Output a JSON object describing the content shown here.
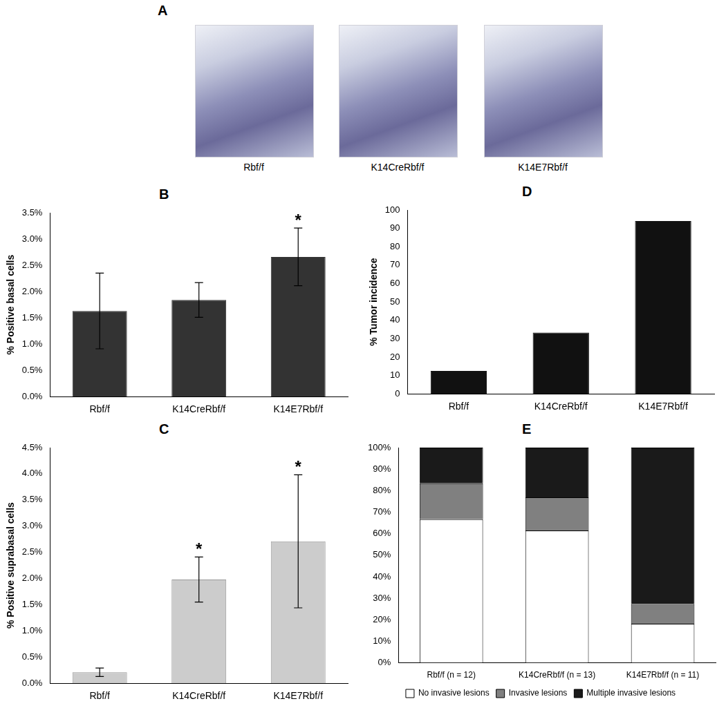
{
  "image_panel": {
    "panel": "A",
    "captions": [
      "Rbf/f",
      "K14CreRbf/f",
      "K14E7Rbf/f"
    ]
  },
  "chart_data": [
    {
      "panel": "B",
      "type": "bar",
      "categories": [
        "Rbf/f",
        "K14CreRbf/f",
        "K14E7Rbf/f"
      ],
      "values": [
        1.63,
        1.84,
        2.66
      ],
      "errors": [
        0.72,
        0.33,
        0.55
      ],
      "color": "#333333",
      "y_label": "% Positive basal cells",
      "ylim": [
        0,
        3.5
      ],
      "yticks": [
        {
          "value": 0,
          "label": "0.0%"
        },
        {
          "value": 0.5,
          "label": "0.5%"
        },
        {
          "value": 1,
          "label": "1.0%"
        },
        {
          "value": 1.5,
          "label": "1.5%"
        },
        {
          "value": 2,
          "label": "2.0%"
        },
        {
          "value": 2.5,
          "label": "2.5%"
        },
        {
          "value": 3,
          "label": "3.0%"
        },
        {
          "value": 3.5,
          "label": "3.5%"
        }
      ],
      "grid": false,
      "annotations": [
        {
          "category": "K14E7Rbf/f",
          "text": "*"
        }
      ]
    },
    {
      "panel": "C",
      "type": "bar",
      "categories": [
        "Rbf/f",
        "K14CreRbf/f",
        "K14E7Rbf/f"
      ],
      "values": [
        0.21,
        1.98,
        2.71
      ],
      "errors": [
        0.08,
        0.43,
        1.27
      ],
      "color": "#cccccc",
      "y_label": "% Positive suprabasal cells",
      "ylim": [
        0,
        4.5
      ],
      "yticks": [
        {
          "value": 0,
          "label": "0.0%"
        },
        {
          "value": 0.5,
          "label": "0.5%"
        },
        {
          "value": 1,
          "label": "1.0%"
        },
        {
          "value": 1.5,
          "label": "1.5%"
        },
        {
          "value": 2,
          "label": "2.0%"
        },
        {
          "value": 2.5,
          "label": "2.5%"
        },
        {
          "value": 3,
          "label": "3.0%"
        },
        {
          "value": 3.5,
          "label": "3.5%"
        },
        {
          "value": 4,
          "label": "4.0%"
        },
        {
          "value": 4.5,
          "label": "4.5%"
        }
      ],
      "grid": false,
      "annotations": [
        {
          "category": "K14CreRbf/f",
          "text": "*"
        },
        {
          "category": "K14E7Rbf/f",
          "text": "*"
        }
      ]
    },
    {
      "panel": "D",
      "type": "bar",
      "categories": [
        "Rbf/f",
        "K14CreRbf/f",
        "K14E7Rbf/f"
      ],
      "values": [
        12.5,
        33.3,
        94
      ],
      "color": "#111111",
      "y_label": "% Tumor incidence",
      "ylim": [
        0,
        100
      ],
      "yticks": [
        0,
        10,
        20,
        30,
        40,
        50,
        60,
        70,
        80,
        90,
        100
      ],
      "grid": false
    },
    {
      "panel": "E",
      "type": "bar",
      "stacked": true,
      "categories": [
        "Rbf/f (n = 12)",
        "K14CreRbf/f (n = 13)",
        "K14E7Rbf/f (n = 11)"
      ],
      "series": [
        {
          "name": "No invasive lesions",
          "color": "#ffffff",
          "values": [
            66.7,
            61.5,
            18.2
          ]
        },
        {
          "name": "Invasive lesions",
          "color": "#808080",
          "values": [
            16.7,
            15.4,
            9.1
          ]
        },
        {
          "name": "Multiple invasive lesions",
          "color": "#1a1a1a",
          "values": [
            16.6,
            23.1,
            72.7
          ]
        }
      ],
      "ylim": [
        0,
        100
      ],
      "yticks": [
        {
          "value": 0,
          "label": "0%"
        },
        {
          "value": 10,
          "label": "10%"
        },
        {
          "value": 20,
          "label": "20%"
        },
        {
          "value": 30,
          "label": "30%"
        },
        {
          "value": 40,
          "label": "40%"
        },
        {
          "value": 50,
          "label": "50%"
        },
        {
          "value": 60,
          "label": "60%"
        },
        {
          "value": 70,
          "label": "70%"
        },
        {
          "value": 80,
          "label": "80%"
        },
        {
          "value": 90,
          "label": "90%"
        },
        {
          "value": 100,
          "label": "100%"
        }
      ],
      "grid": false,
      "legend": "bottom"
    }
  ]
}
